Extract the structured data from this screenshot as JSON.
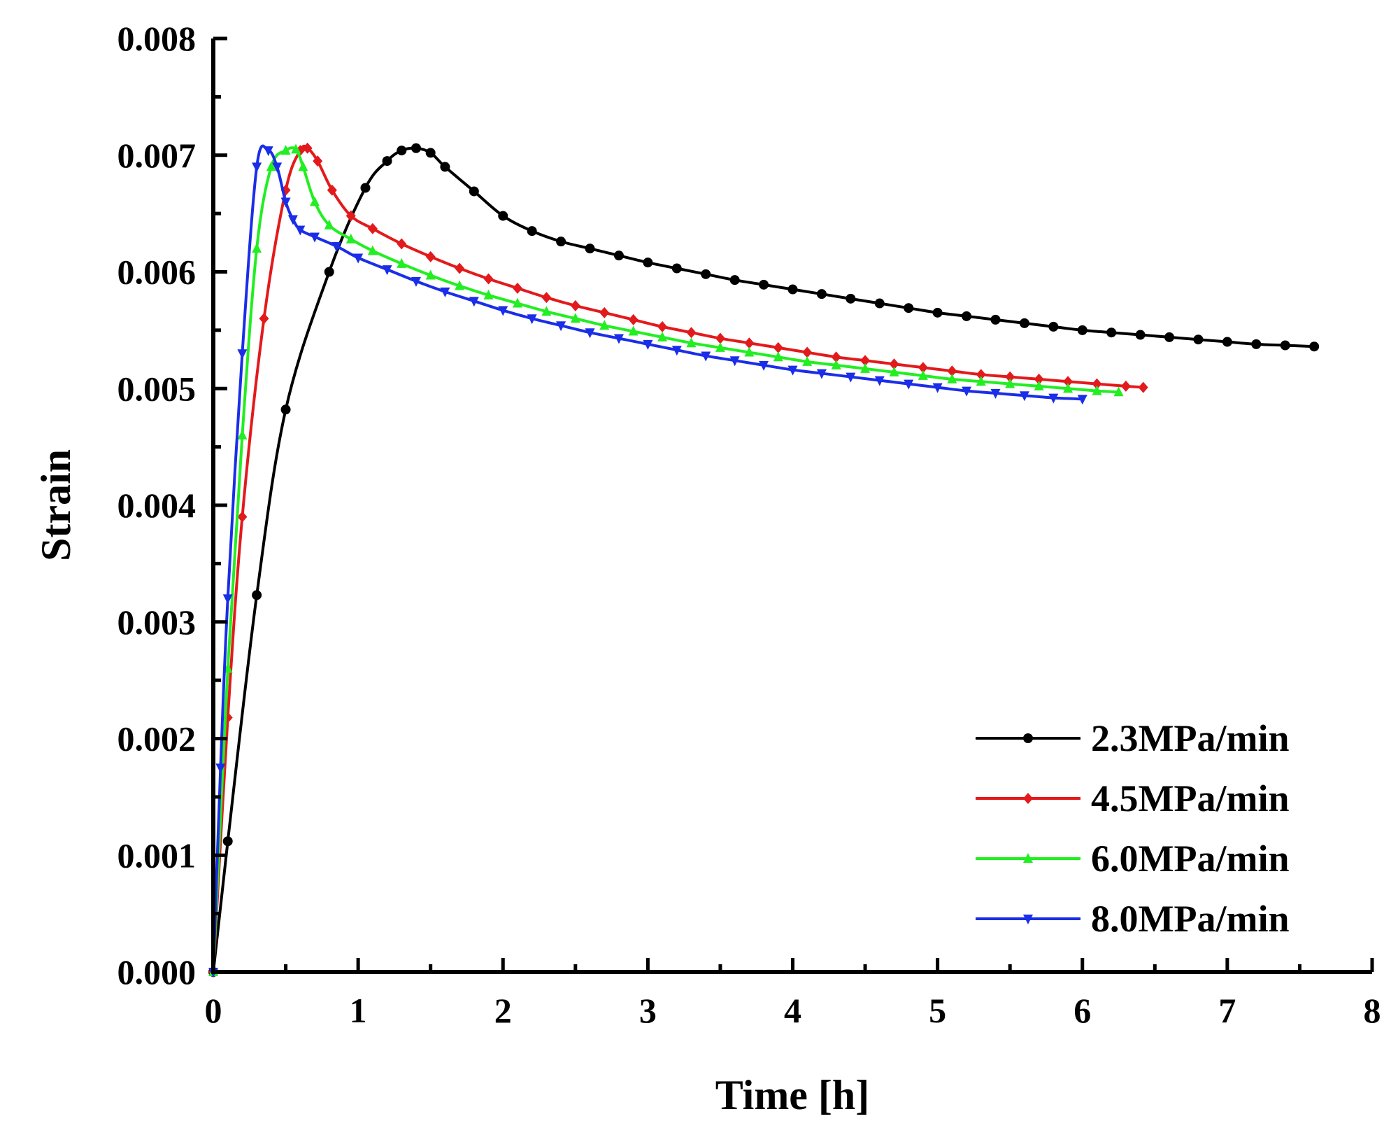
{
  "chart_data": {
    "type": "line",
    "title": "",
    "xlabel": "Time [h]",
    "ylabel": "Strain",
    "xlim": [
      0,
      8
    ],
    "ylim": [
      0,
      0.008
    ],
    "xticks": [
      "0",
      "1",
      "2",
      "3",
      "4",
      "5",
      "6",
      "7",
      "8"
    ],
    "yticks": [
      "0.000",
      "0.001",
      "0.002",
      "0.003",
      "0.004",
      "0.005",
      "0.006",
      "0.007",
      "0.008"
    ],
    "grid": false,
    "legend_position": "bottom-right",
    "series": [
      {
        "name": "2.3MPa/min",
        "color": "#000000",
        "marker": "circle",
        "points": [
          [
            0,
            0
          ],
          [
            0.1,
            0.00112
          ],
          [
            0.3,
            0.00323
          ],
          [
            0.5,
            0.00482
          ],
          [
            0.8,
            0.006
          ],
          [
            1.05,
            0.00672
          ],
          [
            1.2,
            0.00695
          ],
          [
            1.3,
            0.00704
          ],
          [
            1.4,
            0.00706
          ],
          [
            1.5,
            0.00702
          ],
          [
            1.6,
            0.0069
          ],
          [
            1.8,
            0.00669
          ],
          [
            2.0,
            0.00648
          ],
          [
            2.2,
            0.00635
          ],
          [
            2.4,
            0.00626
          ],
          [
            2.6,
            0.0062
          ],
          [
            2.8,
            0.00614
          ],
          [
            3.0,
            0.00608
          ],
          [
            3.2,
            0.00603
          ],
          [
            3.4,
            0.00598
          ],
          [
            3.6,
            0.00593
          ],
          [
            3.8,
            0.00589
          ],
          [
            4.0,
            0.00585
          ],
          [
            4.2,
            0.00581
          ],
          [
            4.4,
            0.00577
          ],
          [
            4.6,
            0.00573
          ],
          [
            4.8,
            0.00569
          ],
          [
            5.0,
            0.00565
          ],
          [
            5.2,
            0.00562
          ],
          [
            5.4,
            0.00559
          ],
          [
            5.6,
            0.00556
          ],
          [
            5.8,
            0.00553
          ],
          [
            6.0,
            0.0055
          ],
          [
            6.2,
            0.00548
          ],
          [
            6.4,
            0.00546
          ],
          [
            6.6,
            0.00544
          ],
          [
            6.8,
            0.00542
          ],
          [
            7.0,
            0.0054
          ],
          [
            7.2,
            0.00538
          ],
          [
            7.4,
            0.00537
          ],
          [
            7.6,
            0.00536
          ]
        ]
      },
      {
        "name": "4.5MPa/min",
        "color": "#e31a1c",
        "marker": "diamond",
        "points": [
          [
            0,
            0
          ],
          [
            0.1,
            0.00218
          ],
          [
            0.2,
            0.0039
          ],
          [
            0.35,
            0.0056
          ],
          [
            0.5,
            0.0067
          ],
          [
            0.6,
            0.00704
          ],
          [
            0.65,
            0.00706
          ],
          [
            0.72,
            0.00695
          ],
          [
            0.82,
            0.0067
          ],
          [
            0.95,
            0.00648
          ],
          [
            1.1,
            0.00637
          ],
          [
            1.3,
            0.00624
          ],
          [
            1.5,
            0.00613
          ],
          [
            1.7,
            0.00603
          ],
          [
            1.9,
            0.00594
          ],
          [
            2.1,
            0.00586
          ],
          [
            2.3,
            0.00578
          ],
          [
            2.5,
            0.00571
          ],
          [
            2.7,
            0.00565
          ],
          [
            2.9,
            0.00559
          ],
          [
            3.1,
            0.00553
          ],
          [
            3.3,
            0.00548
          ],
          [
            3.5,
            0.00543
          ],
          [
            3.7,
            0.00539
          ],
          [
            3.9,
            0.00535
          ],
          [
            4.1,
            0.00531
          ],
          [
            4.3,
            0.00527
          ],
          [
            4.5,
            0.00524
          ],
          [
            4.7,
            0.00521
          ],
          [
            4.9,
            0.00518
          ],
          [
            5.1,
            0.00515
          ],
          [
            5.3,
            0.00512
          ],
          [
            5.5,
            0.0051
          ],
          [
            5.7,
            0.00508
          ],
          [
            5.9,
            0.00506
          ],
          [
            6.1,
            0.00504
          ],
          [
            6.3,
            0.00502
          ],
          [
            6.42,
            0.00501
          ]
        ]
      },
      {
        "name": "6.0MPa/min",
        "color": "#22ee22",
        "marker": "triangle-up",
        "points": [
          [
            0,
            0
          ],
          [
            0.1,
            0.0026
          ],
          [
            0.2,
            0.0046
          ],
          [
            0.3,
            0.0062
          ],
          [
            0.4,
            0.0069
          ],
          [
            0.5,
            0.00704
          ],
          [
            0.57,
            0.00705
          ],
          [
            0.62,
            0.0069
          ],
          [
            0.7,
            0.0066
          ],
          [
            0.8,
            0.0064
          ],
          [
            0.95,
            0.00628
          ],
          [
            1.1,
            0.00618
          ],
          [
            1.3,
            0.00607
          ],
          [
            1.5,
            0.00597
          ],
          [
            1.7,
            0.00588
          ],
          [
            1.9,
            0.0058
          ],
          [
            2.1,
            0.00573
          ],
          [
            2.3,
            0.00566
          ],
          [
            2.5,
            0.0056
          ],
          [
            2.7,
            0.00554
          ],
          [
            2.9,
            0.00549
          ],
          [
            3.1,
            0.00544
          ],
          [
            3.3,
            0.00539
          ],
          [
            3.5,
            0.00535
          ],
          [
            3.7,
            0.00531
          ],
          [
            3.9,
            0.00527
          ],
          [
            4.1,
            0.00523
          ],
          [
            4.3,
            0.0052
          ],
          [
            4.5,
            0.00517
          ],
          [
            4.7,
            0.00514
          ],
          [
            4.9,
            0.00511
          ],
          [
            5.1,
            0.00508
          ],
          [
            5.3,
            0.00506
          ],
          [
            5.5,
            0.00504
          ],
          [
            5.7,
            0.00502
          ],
          [
            5.9,
            0.005
          ],
          [
            6.1,
            0.00498
          ],
          [
            6.25,
            0.00497
          ]
        ]
      },
      {
        "name": "8.0MPa/min",
        "color": "#1a2ee8",
        "marker": "triangle-down",
        "points": [
          [
            0,
            0
          ],
          [
            0.05,
            0.00175
          ],
          [
            0.1,
            0.0032
          ],
          [
            0.2,
            0.0053
          ],
          [
            0.3,
            0.0069
          ],
          [
            0.38,
            0.00704
          ],
          [
            0.44,
            0.0069
          ],
          [
            0.5,
            0.0066
          ],
          [
            0.55,
            0.00645
          ],
          [
            0.6,
            0.00636
          ],
          [
            0.7,
            0.0063
          ],
          [
            0.85,
            0.00622
          ],
          [
            1.0,
            0.00612
          ],
          [
            1.2,
            0.00602
          ],
          [
            1.4,
            0.00592
          ],
          [
            1.6,
            0.00583
          ],
          [
            1.8,
            0.00575
          ],
          [
            2.0,
            0.00567
          ],
          [
            2.2,
            0.0056
          ],
          [
            2.4,
            0.00554
          ],
          [
            2.6,
            0.00548
          ],
          [
            2.8,
            0.00543
          ],
          [
            3.0,
            0.00538
          ],
          [
            3.2,
            0.00533
          ],
          [
            3.4,
            0.00528
          ],
          [
            3.6,
            0.00524
          ],
          [
            3.8,
            0.0052
          ],
          [
            4.0,
            0.00516
          ],
          [
            4.2,
            0.00513
          ],
          [
            4.4,
            0.0051
          ],
          [
            4.6,
            0.00507
          ],
          [
            4.8,
            0.00504
          ],
          [
            5.0,
            0.00501
          ],
          [
            5.2,
            0.00498
          ],
          [
            5.4,
            0.00496
          ],
          [
            5.6,
            0.00494
          ],
          [
            5.8,
            0.00492
          ],
          [
            6.0,
            0.00491
          ]
        ]
      }
    ]
  }
}
